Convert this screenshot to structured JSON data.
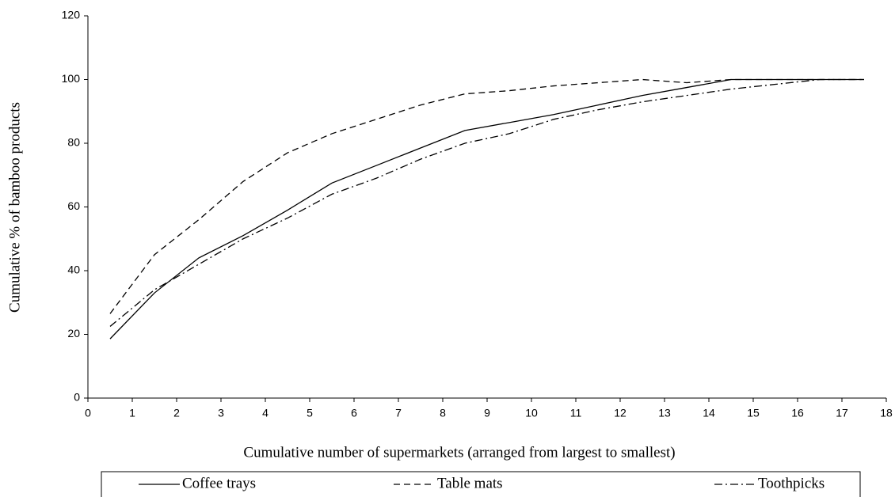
{
  "chart_data": {
    "type": "line",
    "xlabel": "Cumulative number of supermarkets (arranged from largest to smallest)",
    "ylabel": "Cumulative % of bamboo products",
    "x": [
      0.5,
      1.5,
      2.5,
      3.5,
      4.5,
      5.5,
      6.5,
      7.5,
      8.5,
      9.5,
      10.5,
      11.5,
      12.5,
      13.5,
      14.5,
      15.5,
      16.5,
      17.5
    ],
    "series": [
      {
        "name": "Coffee trays",
        "color": "#000000",
        "dash": "solid",
        "values": [
          18.6,
          33,
          44,
          51,
          59,
          67.5,
          73,
          78.5,
          84,
          86.5,
          89,
          92,
          95,
          97.5,
          100,
          100,
          100,
          100
        ]
      },
      {
        "name": "Table mats",
        "color": "#000000",
        "dash": "dashed",
        "values": [
          26.5,
          45,
          56,
          68,
          77,
          83,
          87.5,
          92,
          95.5,
          96.5,
          98,
          99,
          100,
          99,
          100,
          100,
          100,
          100
        ]
      },
      {
        "name": "Toothpicks",
        "color": "#000000",
        "dash": "dashdot",
        "values": [
          22.5,
          34,
          42,
          50,
          56.5,
          64,
          69,
          75,
          80,
          83,
          87.5,
          90.5,
          93,
          95,
          97,
          98.5,
          100,
          100
        ]
      }
    ],
    "xlim": [
      0,
      18
    ],
    "xticks": [
      0,
      1,
      2,
      3,
      4,
      5,
      6,
      7,
      8,
      9,
      10,
      11,
      12,
      13,
      14,
      15,
      16,
      17,
      18
    ],
    "ylim": [
      0,
      120
    ],
    "yticks": [
      0,
      20,
      40,
      60,
      80,
      100,
      120
    ],
    "grid": false,
    "legend": "bottom"
  }
}
